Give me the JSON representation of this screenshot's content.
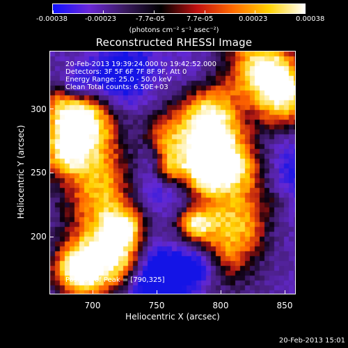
{
  "colorbar": {
    "tick_labels": [
      "-0.00038",
      "-0.00023",
      "-7.7e-05",
      "7.7e-05",
      "0.00023",
      "0.00038"
    ],
    "units": "(photons cm⁻² s⁻¹ asec⁻²)",
    "colors": [
      "#1010ff",
      "#6a28d8",
      "#3a1a60",
      "#000000",
      "#c01010",
      "#ff6a00",
      "#ffd200",
      "#ffffff"
    ]
  },
  "title": "Reconstructed RHESSI Image",
  "info_lines": [
    "20-Feb-2013 19:39:24.000 to 19:42:52.000",
    "Detectors: 3F 5F 6F 7F 8F 9F, Att 0",
    "Energy Range: 25.0 - 50.0 keV",
    "Clean     Total counts: 6.50E+03"
  ],
  "peak_text": "Position of Peak = [790,325]",
  "x_axis": {
    "label": "Heliocentric X (arcsec)",
    "ticks": [
      "700",
      "750",
      "800",
      "850"
    ]
  },
  "y_axis": {
    "label": "Heliocentric Y (arcsec)",
    "ticks": [
      "200",
      "250",
      "300"
    ]
  },
  "footer": "20-Feb-2013 15:01"
}
